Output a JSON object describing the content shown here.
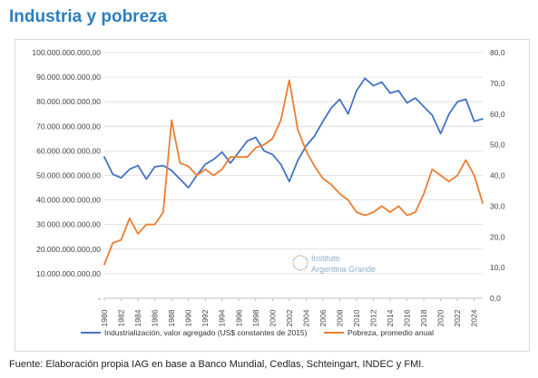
{
  "header": {
    "title": "Industria y pobreza"
  },
  "footer": {
    "source": "Fuente: Elaboración propia IAG en base a Banco Mundial, Cedlas, Schteingart, INDEC y FMI."
  },
  "watermark": {
    "line1": "Instituto",
    "line2": "Argentina Grande"
  },
  "colors": {
    "series1": "#4472c4",
    "series2": "#ed7d31",
    "grid": "#d9d9d9",
    "title": "#2b7fbf"
  },
  "chart_data": {
    "type": "line",
    "title": "",
    "x_tick_labels": [
      "1980",
      "1982",
      "1984",
      "1986",
      "1988",
      "1990",
      "1992",
      "1994",
      "1996",
      "1998",
      "2000",
      "2002",
      "2004",
      "2006",
      "2008",
      "2010",
      "2012",
      "2014",
      "2016",
      "2018",
      "2020",
      "2022",
      "2024"
    ],
    "xlim": [
      1980,
      2025
    ],
    "y_left": {
      "ylim": [
        0,
        100000000000
      ],
      "tick_labels": [
        "-",
        "10.000.000.000,00",
        "20.000.000.000,00",
        "30.000.000.000,00",
        "40.000.000.000,00",
        "50.000.000.000,00",
        "60.000.000.000,00",
        "70.000.000.000,00",
        "80.000.000.000,00",
        "90.000.000.000,00",
        "100.000.000.000,00"
      ]
    },
    "y_right": {
      "ylim": [
        0,
        80
      ],
      "tick_labels": [
        "0,0",
        "10,0",
        "20,0",
        "30,0",
        "40,0",
        "50,0",
        "60,0",
        "70,0",
        "80,0"
      ]
    },
    "grid": true,
    "legend_position": "bottom",
    "series": [
      {
        "name": "Industrialización, valor agregado (US$ constantes de 2015)",
        "axis": "left",
        "x": [
          1980,
          1981,
          1982,
          1983,
          1984,
          1985,
          1986,
          1987,
          1988,
          1989,
          1990,
          1991,
          1992,
          1993,
          1994,
          1995,
          1996,
          1997,
          1998,
          1999,
          2000,
          2001,
          2002,
          2003,
          2004,
          2005,
          2006,
          2007,
          2008,
          2009,
          2010,
          2011,
          2012,
          2013,
          2014,
          2015,
          2016,
          2017,
          2018,
          2019,
          2020,
          2021,
          2022,
          2023,
          2024,
          2025
        ],
        "values": [
          57500000000,
          50500000000,
          49000000000,
          52500000000,
          54000000000,
          48500000000,
          53500000000,
          54000000000,
          52000000000,
          48500000000,
          45000000000,
          50000000000,
          54500000000,
          56500000000,
          59500000000,
          55000000000,
          59500000000,
          64000000000,
          65500000000,
          60000000000,
          58500000000,
          54500000000,
          47500000000,
          56000000000,
          62000000000,
          66000000000,
          72000000000,
          77500000000,
          81000000000,
          75000000000,
          84500000000,
          89500000000,
          86500000000,
          88000000000,
          83500000000,
          84500000000,
          79500000000,
          81500000000,
          78000000000,
          74500000000,
          67000000000,
          75000000000,
          80000000000,
          81000000000,
          72000000000,
          73000000000
        ]
      },
      {
        "name": "Pobreza, promedio anual",
        "axis": "right",
        "x": [
          1980,
          1981,
          1982,
          1983,
          1984,
          1985,
          1986,
          1987,
          1988,
          1989,
          1990,
          1991,
          1992,
          1993,
          1994,
          1995,
          1996,
          1997,
          1998,
          1999,
          2000,
          2001,
          2002,
          2003,
          2004,
          2005,
          2006,
          2007,
          2008,
          2009,
          2010,
          2011,
          2012,
          2013,
          2014,
          2015,
          2016,
          2017,
          2018,
          2019,
          2020,
          2021,
          2022,
          2023,
          2024,
          2025
        ],
        "values": [
          11,
          18,
          19,
          26,
          21,
          24,
          24,
          28,
          58,
          44,
          43,
          40,
          42,
          40,
          42,
          46,
          46,
          46,
          49,
          50,
          52,
          58,
          71,
          55,
          48,
          43,
          39,
          37,
          34,
          32,
          28,
          27,
          28,
          30,
          28,
          30,
          27,
          28,
          34,
          42,
          40,
          38,
          40,
          45,
          40,
          31
        ]
      }
    ]
  }
}
